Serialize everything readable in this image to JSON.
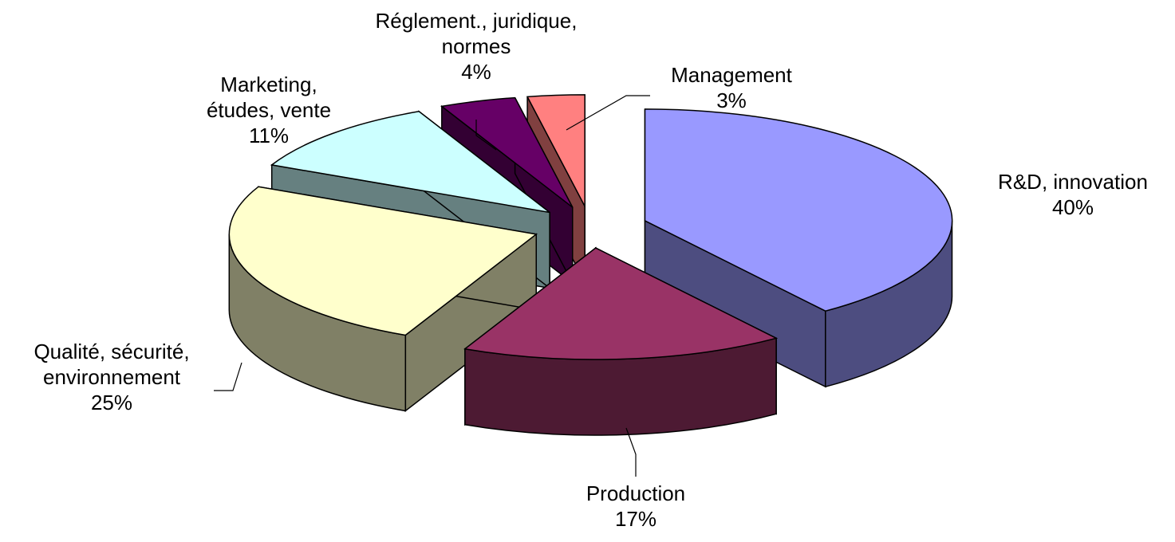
{
  "chart_data": {
    "type": "pie3d",
    "categories": [
      "R&D, innovation",
      "Production",
      "Qualité, sécurité, environnement",
      "Marketing, études, vente",
      "Réglement., juridique, normes",
      "Management"
    ],
    "values": [
      40,
      17,
      25,
      11,
      4,
      3
    ],
    "value_labels": [
      "40%",
      "17%",
      "25%",
      "11%",
      "4%",
      "3%"
    ],
    "colors": [
      "#9999ff",
      "#993366",
      "#ffffcc",
      "#ccffff",
      "#660066",
      "#ff8080"
    ]
  }
}
